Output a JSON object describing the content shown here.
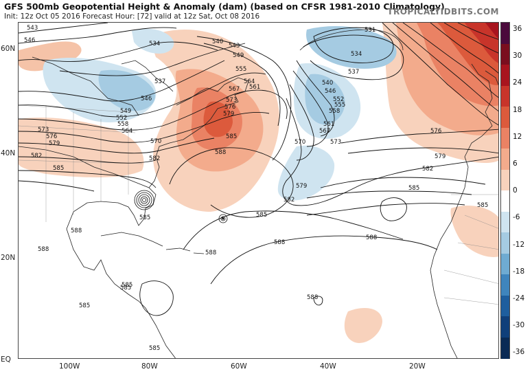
{
  "title": "GFS 500mb Geopotential Height & Anomaly (dam) (based on CFSR 1981-2010 Climatology)",
  "subtitle": "Init: 12z Oct 05 2016   Forecast Hour: [72]   valid at 12z Sat, Oct 08 2016",
  "credit": "TROPICALTIDBITS.COM",
  "lat_labels": [
    "60N",
    "40N",
    "20N",
    "EQ"
  ],
  "lon_labels": [
    "100W",
    "80W",
    "60W",
    "40W",
    "20W"
  ],
  "colorbar": {
    "labels": [
      "36",
      "30",
      "24",
      "18",
      "12",
      "6",
      "0",
      "-6",
      "-12",
      "-18",
      "-24",
      "-30",
      "-36"
    ],
    "colors": [
      "#4b0a3c",
      "#7a0e1e",
      "#a8141e",
      "#c8342a",
      "#dc5a3c",
      "#ea8264",
      "#f3ab8c",
      "#f8d2bc",
      "#ffffff",
      "#cfe4f0",
      "#a5cbe2",
      "#6fabd2",
      "#3f85bd",
      "#1e5e9e",
      "#103f7a",
      "#0a2a55"
    ]
  },
  "contours": {
    "c543a": "543",
    "c546a": "546",
    "c534a": "534",
    "c537a": "537",
    "c546b": "546",
    "c549a": "549",
    "c552a": "552",
    "c558a": "558",
    "c564a": "564",
    "c570a": "570",
    "c573a": "573",
    "c576a": "576",
    "c579a": "579",
    "c582a": "582",
    "c585a": "585",
    "c582b": "582",
    "c585b": "585",
    "c588a": "588",
    "c585c": "585",
    "c588b": "588",
    "c540a": "540",
    "c543b": "543",
    "c549b": "549",
    "c555a": "555",
    "c561a": "561",
    "c564b": "564",
    "c567a": "567",
    "c573b": "573",
    "c576b": "576",
    "c579b": "579",
    "c585d": "585",
    "c588c": "588",
    "c531a": "531",
    "c534b": "534",
    "c537b": "537",
    "c540b": "540",
    "c546c": "546",
    "c552b": "552",
    "c555b": "555",
    "c558b": "558",
    "c561b": "561",
    "c567b": "567",
    "c570b": "570",
    "c573c": "573",
    "c579c": "579",
    "c582c": "582",
    "c576c": "576",
    "c579d": "579",
    "c582d": "582",
    "c585e": "585",
    "c588d": "588",
    "c588e": "588",
    "c585f": "585",
    "c588f": "588",
    "c588g": "588",
    "c585g": "585",
    "c585h": "585",
    "c585i": "585",
    "c585j": "585"
  }
}
